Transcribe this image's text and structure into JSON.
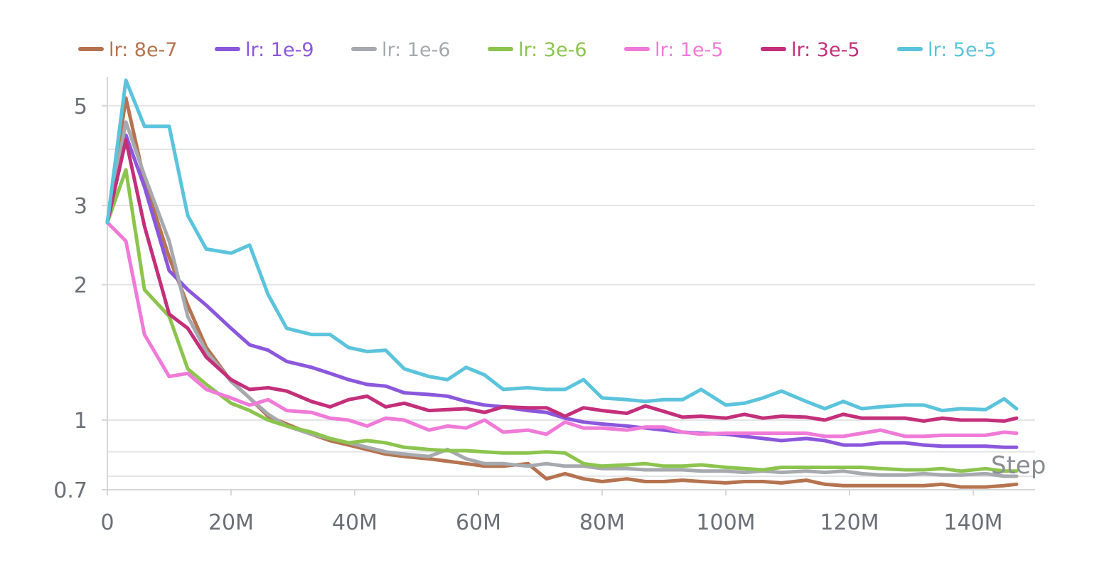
{
  "chart_data": {
    "type": "line",
    "y_scale": "log",
    "xlabel": "Step",
    "ylabel": "",
    "xlim": [
      0,
      150000000
    ],
    "ylim": [
      0.7,
      5.8
    ],
    "x_ticks": [
      0,
      20000000,
      40000000,
      60000000,
      80000000,
      100000000,
      120000000,
      140000000
    ],
    "x_tick_labels": [
      "0",
      "20M",
      "40M",
      "60M",
      "80M",
      "100M",
      "120M",
      "140M"
    ],
    "y_ticks": [
      0.7,
      1,
      2,
      3,
      5
    ],
    "y_tick_labels": [
      "0.7",
      "1",
      "2",
      "3",
      "5"
    ],
    "y_grid": [
      0.75,
      0.85,
      1,
      2,
      3,
      4,
      5
    ],
    "grid": true,
    "legend_position": "top",
    "x": [
      0,
      3,
      6,
      10,
      13,
      16,
      20,
      23,
      26,
      29,
      33,
      36,
      39,
      42,
      45,
      48,
      52,
      55,
      58,
      61,
      64,
      68,
      71,
      74,
      77,
      80,
      84,
      87,
      90,
      93,
      96,
      100,
      103,
      106,
      109,
      113,
      116,
      119,
      122,
      125,
      129,
      132,
      135,
      138,
      142,
      145,
      147
    ],
    "x_unit": "M",
    "series": [
      {
        "name": "lr: 8e-7",
        "color": "#b5734f",
        "values": [
          2.75,
          5.2,
          3.4,
          2.3,
          1.8,
          1.45,
          1.22,
          1.12,
          1.02,
          0.98,
          0.93,
          0.9,
          0.88,
          0.86,
          0.84,
          0.83,
          0.82,
          0.81,
          0.8,
          0.79,
          0.79,
          0.8,
          0.74,
          0.76,
          0.74,
          0.73,
          0.74,
          0.73,
          0.73,
          0.735,
          0.73,
          0.725,
          0.73,
          0.73,
          0.725,
          0.735,
          0.72,
          0.715,
          0.715,
          0.715,
          0.715,
          0.715,
          0.72,
          0.71,
          0.71,
          0.715,
          0.72
        ]
      },
      {
        "name": "lr: 1e-9",
        "color": "#8b57dd",
        "values": [
          2.75,
          4.3,
          3.3,
          2.15,
          1.95,
          1.8,
          1.6,
          1.47,
          1.43,
          1.35,
          1.31,
          1.27,
          1.23,
          1.2,
          1.19,
          1.15,
          1.14,
          1.13,
          1.1,
          1.08,
          1.07,
          1.05,
          1.04,
          1.01,
          0.99,
          0.98,
          0.97,
          0.96,
          0.95,
          0.94,
          0.935,
          0.93,
          0.92,
          0.91,
          0.9,
          0.91,
          0.9,
          0.88,
          0.88,
          0.89,
          0.89,
          0.88,
          0.875,
          0.875,
          0.875,
          0.87,
          0.87
        ]
      },
      {
        "name": "lr: 1e-6",
        "color": "#a6a9ad",
        "values": [
          2.75,
          4.6,
          3.5,
          2.5,
          1.7,
          1.42,
          1.22,
          1.12,
          1.03,
          0.97,
          0.93,
          0.91,
          0.89,
          0.87,
          0.85,
          0.84,
          0.83,
          0.86,
          0.82,
          0.8,
          0.8,
          0.79,
          0.8,
          0.79,
          0.79,
          0.78,
          0.78,
          0.775,
          0.775,
          0.775,
          0.77,
          0.77,
          0.765,
          0.77,
          0.765,
          0.77,
          0.765,
          0.77,
          0.76,
          0.755,
          0.755,
          0.76,
          0.755,
          0.755,
          0.76,
          0.75,
          0.75
        ]
      },
      {
        "name": "lr: 3e-6",
        "color": "#8cc44e",
        "values": [
          2.75,
          3.6,
          1.95,
          1.7,
          1.3,
          1.2,
          1.09,
          1.05,
          1.0,
          0.97,
          0.94,
          0.91,
          0.89,
          0.9,
          0.89,
          0.87,
          0.86,
          0.855,
          0.855,
          0.85,
          0.845,
          0.845,
          0.85,
          0.845,
          0.8,
          0.79,
          0.795,
          0.8,
          0.79,
          0.79,
          0.795,
          0.785,
          0.78,
          0.775,
          0.785,
          0.785,
          0.785,
          0.785,
          0.785,
          0.78,
          0.775,
          0.775,
          0.78,
          0.77,
          0.78,
          0.77,
          0.77
        ]
      },
      {
        "name": "lr: 1e-5",
        "color": "#f07ad8",
        "values": [
          2.75,
          2.5,
          1.55,
          1.25,
          1.27,
          1.17,
          1.12,
          1.08,
          1.11,
          1.05,
          1.04,
          1.01,
          1.0,
          0.97,
          1.01,
          1.0,
          0.95,
          0.97,
          0.96,
          1.0,
          0.94,
          0.95,
          0.93,
          0.99,
          0.96,
          0.96,
          0.95,
          0.965,
          0.965,
          0.94,
          0.93,
          0.935,
          0.935,
          0.935,
          0.935,
          0.935,
          0.92,
          0.92,
          0.935,
          0.95,
          0.92,
          0.92,
          0.925,
          0.925,
          0.925,
          0.94,
          0.935
        ]
      },
      {
        "name": "lr: 3e-5",
        "color": "#c42f7a",
        "values": [
          2.75,
          4.2,
          2.7,
          1.72,
          1.6,
          1.38,
          1.23,
          1.17,
          1.18,
          1.16,
          1.1,
          1.07,
          1.11,
          1.13,
          1.07,
          1.09,
          1.05,
          1.055,
          1.06,
          1.04,
          1.07,
          1.065,
          1.065,
          1.02,
          1.065,
          1.05,
          1.035,
          1.075,
          1.045,
          1.015,
          1.02,
          1.01,
          1.03,
          1.01,
          1.02,
          1.015,
          1.0,
          1.03,
          1.01,
          1.01,
          1.01,
          0.995,
          1.01,
          1.0,
          1.0,
          0.995,
          1.01
        ]
      },
      {
        "name": "lr: 5e-5",
        "color": "#5bc4dc",
        "values": [
          2.75,
          5.7,
          4.5,
          4.5,
          2.85,
          2.4,
          2.35,
          2.45,
          1.9,
          1.6,
          1.55,
          1.55,
          1.45,
          1.42,
          1.43,
          1.3,
          1.25,
          1.23,
          1.31,
          1.26,
          1.17,
          1.18,
          1.17,
          1.17,
          1.23,
          1.12,
          1.11,
          1.1,
          1.11,
          1.11,
          1.17,
          1.08,
          1.09,
          1.12,
          1.16,
          1.1,
          1.06,
          1.1,
          1.06,
          1.07,
          1.08,
          1.08,
          1.05,
          1.06,
          1.055,
          1.115,
          1.06
        ]
      }
    ]
  }
}
